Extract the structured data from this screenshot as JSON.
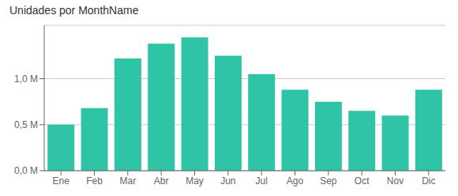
{
  "chart_data": {
    "type": "bar",
    "title": "Unidades por MonthName",
    "categories": [
      "Ene",
      "Feb",
      "Mar",
      "Abr",
      "May",
      "Jun",
      "Jul",
      "Ago",
      "Sep",
      "Oct",
      "Nov",
      "Dic"
    ],
    "values": [
      0.5,
      0.68,
      1.22,
      1.38,
      1.45,
      1.25,
      1.05,
      0.88,
      0.75,
      0.65,
      0.6,
      0.88
    ],
    "color": "#2ec4a5",
    "ylim": [
      0,
      1.58
    ],
    "yticks": [
      {
        "value": 0,
        "label": "0,0 M"
      },
      {
        "value": 0.5,
        "label": "0,5 M"
      },
      {
        "value": 1,
        "label": "1,0 M"
      }
    ],
    "grid": true
  }
}
